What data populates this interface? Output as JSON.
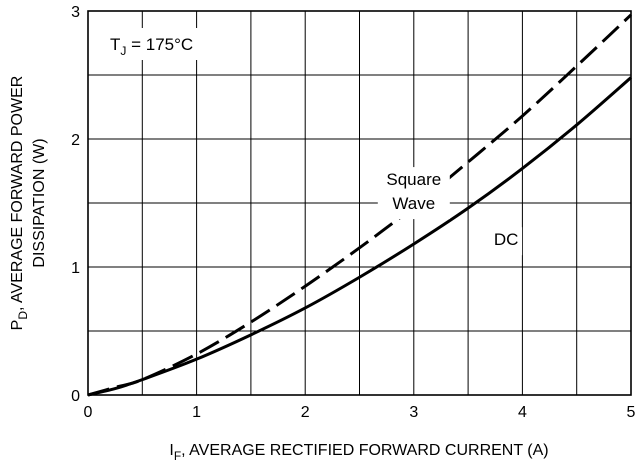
{
  "chart_data": {
    "type": "line",
    "title": "",
    "xlabel_main": "I",
    "xlabel_sub": "F",
    "xlabel_rest": ", AVERAGE RECTIFIED FORWARD CURRENT (A)",
    "ylabel_main": "P",
    "ylabel_sub": "D",
    "ylabel_rest": ", AVERAGE FORWARD POWER",
    "ylabel_line2": "DISSIPATION (W)",
    "xlim": [
      0,
      5
    ],
    "ylim": [
      0,
      3
    ],
    "x_ticks": [
      "0",
      "1",
      "2",
      "3",
      "4",
      "5"
    ],
    "y_ticks": [
      "0",
      "1",
      "2",
      "3"
    ],
    "grid": true,
    "annotation": {
      "main": "T",
      "sub": "J",
      "rest": " = 175°C"
    },
    "series": [
      {
        "name": "Square Wave",
        "style": "dashed",
        "x": [
          0,
          0.25,
          0.5,
          1.0,
          1.5,
          2.0,
          2.5,
          3.0,
          3.5,
          4.0,
          4.5,
          5.0
        ],
        "y": [
          0,
          0.06,
          0.12,
          0.32,
          0.57,
          0.85,
          1.15,
          1.47,
          1.82,
          2.18,
          2.57,
          2.97
        ]
      },
      {
        "name": "DC",
        "style": "solid",
        "x": [
          0,
          0.25,
          0.5,
          1.0,
          1.5,
          2.0,
          2.5,
          3.0,
          3.5,
          4.0,
          4.5,
          5.0
        ],
        "y": [
          0,
          0.05,
          0.12,
          0.28,
          0.47,
          0.68,
          0.92,
          1.18,
          1.46,
          1.77,
          2.11,
          2.48
        ]
      }
    ],
    "series_labels": [
      {
        "lines": [
          "Square",
          "Wave"
        ],
        "at": [
          3.0,
          1.64
        ]
      },
      {
        "lines": [
          "DC"
        ],
        "at": [
          3.85,
          1.17
        ]
      }
    ],
    "colors": {
      "line": "#000000",
      "grid": "#000000",
      "background": "#ffffff"
    }
  }
}
